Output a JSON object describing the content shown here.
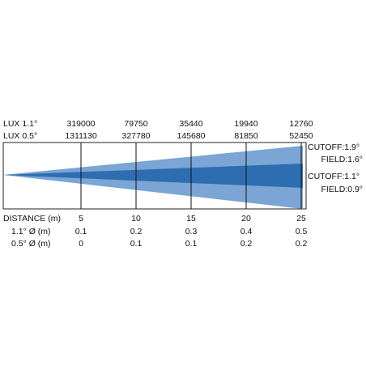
{
  "lux": {
    "rows": [
      {
        "label": "LUX  1.1°",
        "values": [
          "319000",
          "79750",
          "35440",
          "19940",
          "12760"
        ]
      },
      {
        "label": "LUX  0.5°",
        "values": [
          "1311130",
          "327780",
          "145680",
          "81850",
          "52450"
        ]
      }
    ]
  },
  "distance": {
    "label": "DISTANCE (m)",
    "values": [
      "5",
      "10",
      "15",
      "20",
      "25"
    ]
  },
  "diameters": [
    {
      "label": "1.1° Ø (m)",
      "values": [
        "0.1",
        "0.2",
        "0.3",
        "0.4",
        "0.5"
      ]
    },
    {
      "label": "0.5° Ø (m)",
      "values": [
        "0",
        "0.1",
        "0.1",
        "0.2",
        "0.2"
      ]
    }
  ],
  "beam_labels": {
    "outer_cutoff": "CUTOFF:1.9°",
    "outer_field": "FIELD:1.6°",
    "inner_cutoff": "CUTOFF:1.1°",
    "inner_field": "FIELD:0.9°"
  },
  "colors": {
    "outer_beam": "#7aa5d4",
    "inner_beam": "#2f6db1",
    "frame": "#222222"
  }
}
